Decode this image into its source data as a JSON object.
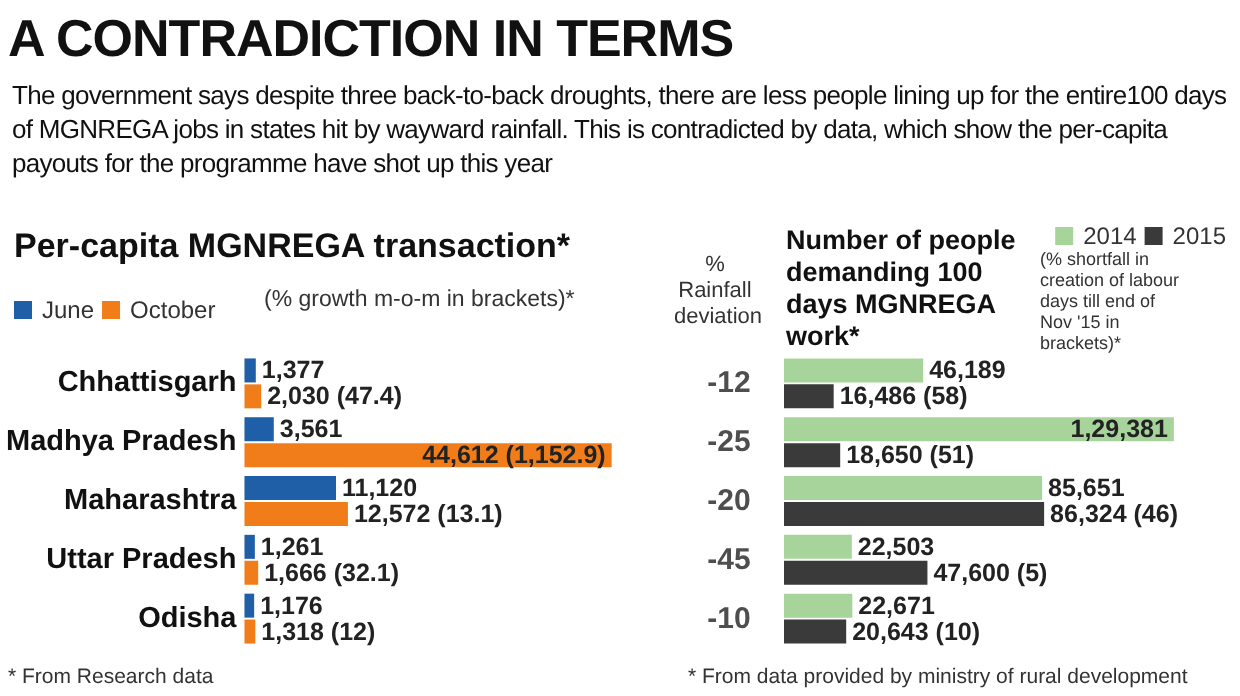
{
  "chart_data": [
    {
      "type": "other",
      "title": "A CONTRADICTION IN TERMS",
      "subtitle": "The government says despite three back-to-back droughts, there are less people lining up for the entire100 days of MGNREGA jobs in states hit by wayward rainfall. This is contradicted by data, which show the per-capita payouts for the programme have shot up this year"
    },
    {
      "type": "bar",
      "orientation": "horizontal",
      "title": "Per-capita MGNREGA transaction*",
      "subtitle": "(% growth m-o-m in brackets)*",
      "categories": [
        "Chhattisgarh",
        "Madhya Pradesh",
        "Maharashtra",
        "Uttar Pradesh",
        "Odisha"
      ],
      "series": [
        {
          "name": "June",
          "color": "#1f5fa8",
          "values": [
            1377,
            3561,
            11120,
            1261,
            1176
          ],
          "value_labels": [
            "1,377",
            "3,561",
            "11,120",
            "1,261",
            "1,176"
          ]
        },
        {
          "name": "October",
          "color": "#f07d1a",
          "values": [
            2030,
            44612,
            12572,
            1666,
            1318
          ],
          "value_labels": [
            "2,030 (47.4)",
            "44,612 (1,152.9)",
            "12,572 (13.1)",
            "1,666 (32.1)",
            "1,318 (12)"
          ]
        }
      ],
      "legend": "top left",
      "tick_labels": "y",
      "annotations": [
        "* From Research data"
      ]
    },
    {
      "type": "other",
      "title": "% Rainfall deviation",
      "categories": [
        null,
        null,
        null,
        null,
        null
      ],
      "values": [
        -12,
        -25,
        -20,
        -45,
        -10
      ],
      "data_labels": true
    },
    {
      "type": "bar",
      "orientation": "horizontal",
      "title": "Number of people demanding 100 days MGNREGA work*",
      "subtitle": "(% shortfall in creation of labour days till end of Nov '15 in brackets)*",
      "categories": [
        null,
        null,
        null,
        null,
        null
      ],
      "series": [
        {
          "name": "2014",
          "color": "#a6d49a",
          "values": [
            46189,
            129381,
            85651,
            22503,
            22671
          ],
          "value_labels": [
            "46,189",
            "1,29,381",
            "85,651",
            "22,503",
            "22,671"
          ]
        },
        {
          "name": "2015",
          "color": "#3a3a3a",
          "values": [
            16486,
            18650,
            86324,
            47600,
            20643
          ],
          "value_labels": [
            "16,486 (58)",
            "18,650 (51)",
            "86,324 (46)",
            "47,600 (5)",
            "20,643 (10)"
          ]
        }
      ],
      "legend": "top right",
      "annotations": [
        "* From data provided by ministry of rural development"
      ]
    }
  ]
}
